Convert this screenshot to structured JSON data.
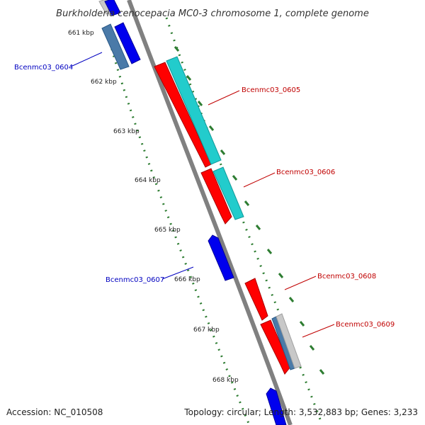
{
  "title": "Burkholderia cenocepacia MC0-3 chromosome 1, complete genome",
  "footer": {
    "accession": "Accession: NC_010508",
    "topology": "Topology: circular; Length: 3,532,883 bp; Genes: 3,233"
  },
  "colors": {
    "backbone": "#808080",
    "tick_mark": "#2e7d32",
    "forward_label": "#c00000",
    "reverse_label": "#0000c0",
    "gene_red": "#ff0000",
    "gene_cyan": "#22cccc",
    "gene_blue": "#0000ee",
    "gene_steel": "#4a7aa8",
    "gene_gray": "#c8c8c8"
  },
  "ticks": [
    {
      "label": "661 kbp"
    },
    {
      "label": "662 kbp"
    },
    {
      "label": "663 kbp"
    },
    {
      "label": "664 kbp"
    },
    {
      "label": "665 kbp"
    },
    {
      "label": "666 kbp"
    },
    {
      "label": "667 kbp"
    },
    {
      "label": "668 kbp"
    }
  ],
  "genes": [
    {
      "label": "Bcenmc03_0604",
      "strand": "reverse"
    },
    {
      "label": "Bcenmc03_0605",
      "strand": "forward"
    },
    {
      "label": "Bcenmc03_0606",
      "strand": "forward"
    },
    {
      "label": "Bcenmc03_0607",
      "strand": "reverse"
    },
    {
      "label": "Bcenmc03_0608",
      "strand": "forward"
    },
    {
      "label": "Bcenmc03_0609",
      "strand": "forward"
    }
  ]
}
